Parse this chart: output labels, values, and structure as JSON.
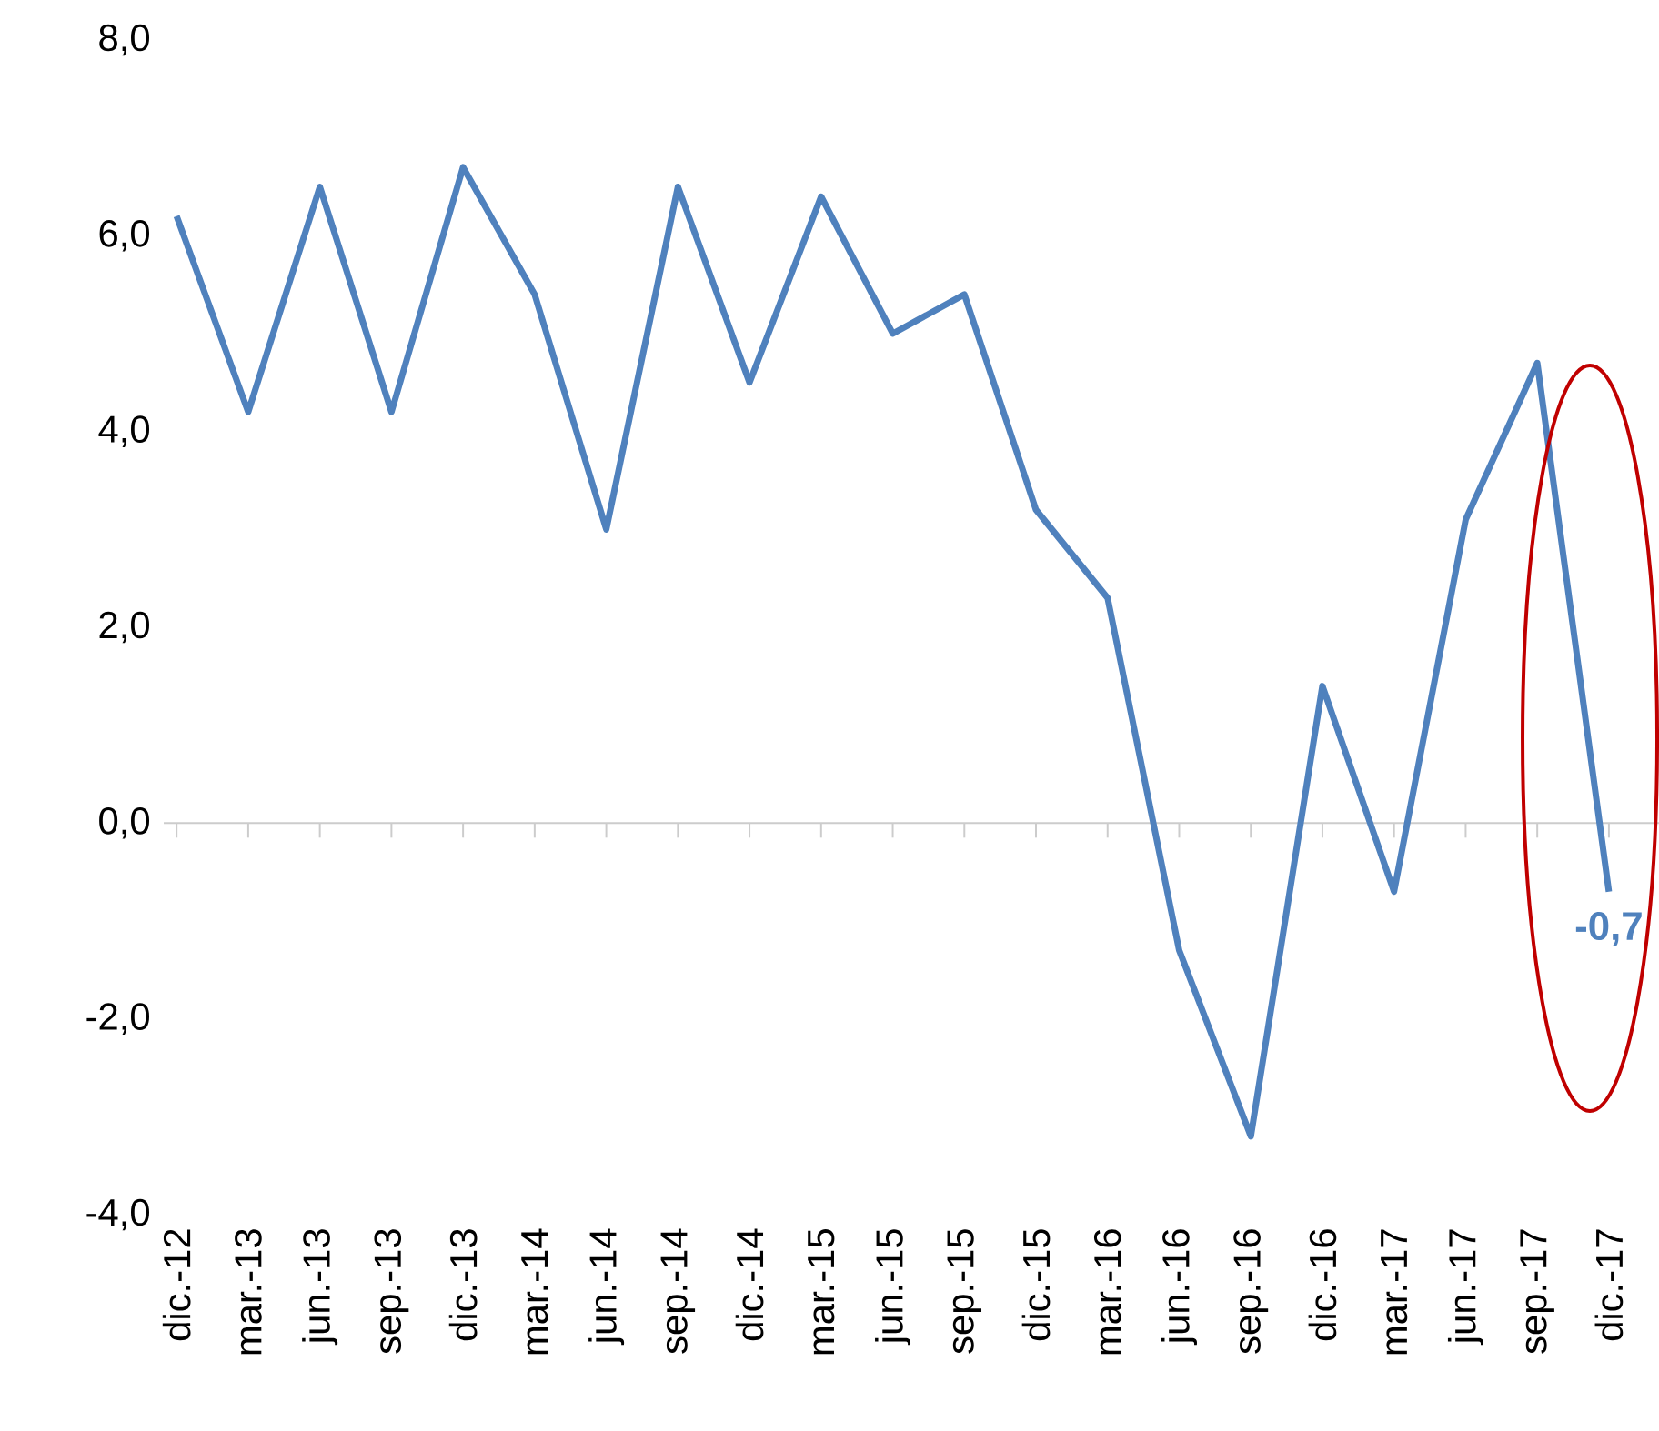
{
  "chart_data": {
    "type": "line",
    "categories": [
      "dic.-12",
      "mar.-13",
      "jun.-13",
      "sep.-13",
      "dic.-13",
      "mar.-14",
      "jun.-14",
      "sep.-14",
      "dic.-14",
      "mar.-15",
      "jun.-15",
      "sep.-15",
      "dic.-15",
      "mar.-16",
      "jun.-16",
      "sep.-16",
      "dic.-16",
      "mar.-17",
      "jun.-17",
      "sep.-17",
      "dic.-17"
    ],
    "series": [
      {
        "color": "#4f81bd",
        "values": [
          6.2,
          4.2,
          6.5,
          4.2,
          6.7,
          5.4,
          3.0,
          6.5,
          4.5,
          6.4,
          5.0,
          5.4,
          3.2,
          2.3,
          -1.3,
          -3.2,
          1.4,
          -0.7,
          3.1,
          4.7,
          -0.7
        ],
        "value_labels": [
          null,
          null,
          null,
          null,
          null,
          null,
          null,
          null,
          null,
          null,
          null,
          null,
          null,
          null,
          null,
          null,
          null,
          null,
          null,
          null,
          "-0,7"
        ]
      }
    ],
    "ylim": [
      -4,
      8
    ],
    "yticks": [
      {
        "value": -4,
        "label": "-4,0"
      },
      {
        "value": -2,
        "label": "-2,0"
      },
      {
        "value": 0,
        "label": "0,0"
      },
      {
        "value": 2,
        "label": "2,0"
      },
      {
        "value": 4,
        "label": "4,0"
      },
      {
        "value": 6,
        "label": "6,0"
      },
      {
        "value": 8,
        "label": "8,0"
      }
    ],
    "marker": "none",
    "line_style": "solid"
  }
}
